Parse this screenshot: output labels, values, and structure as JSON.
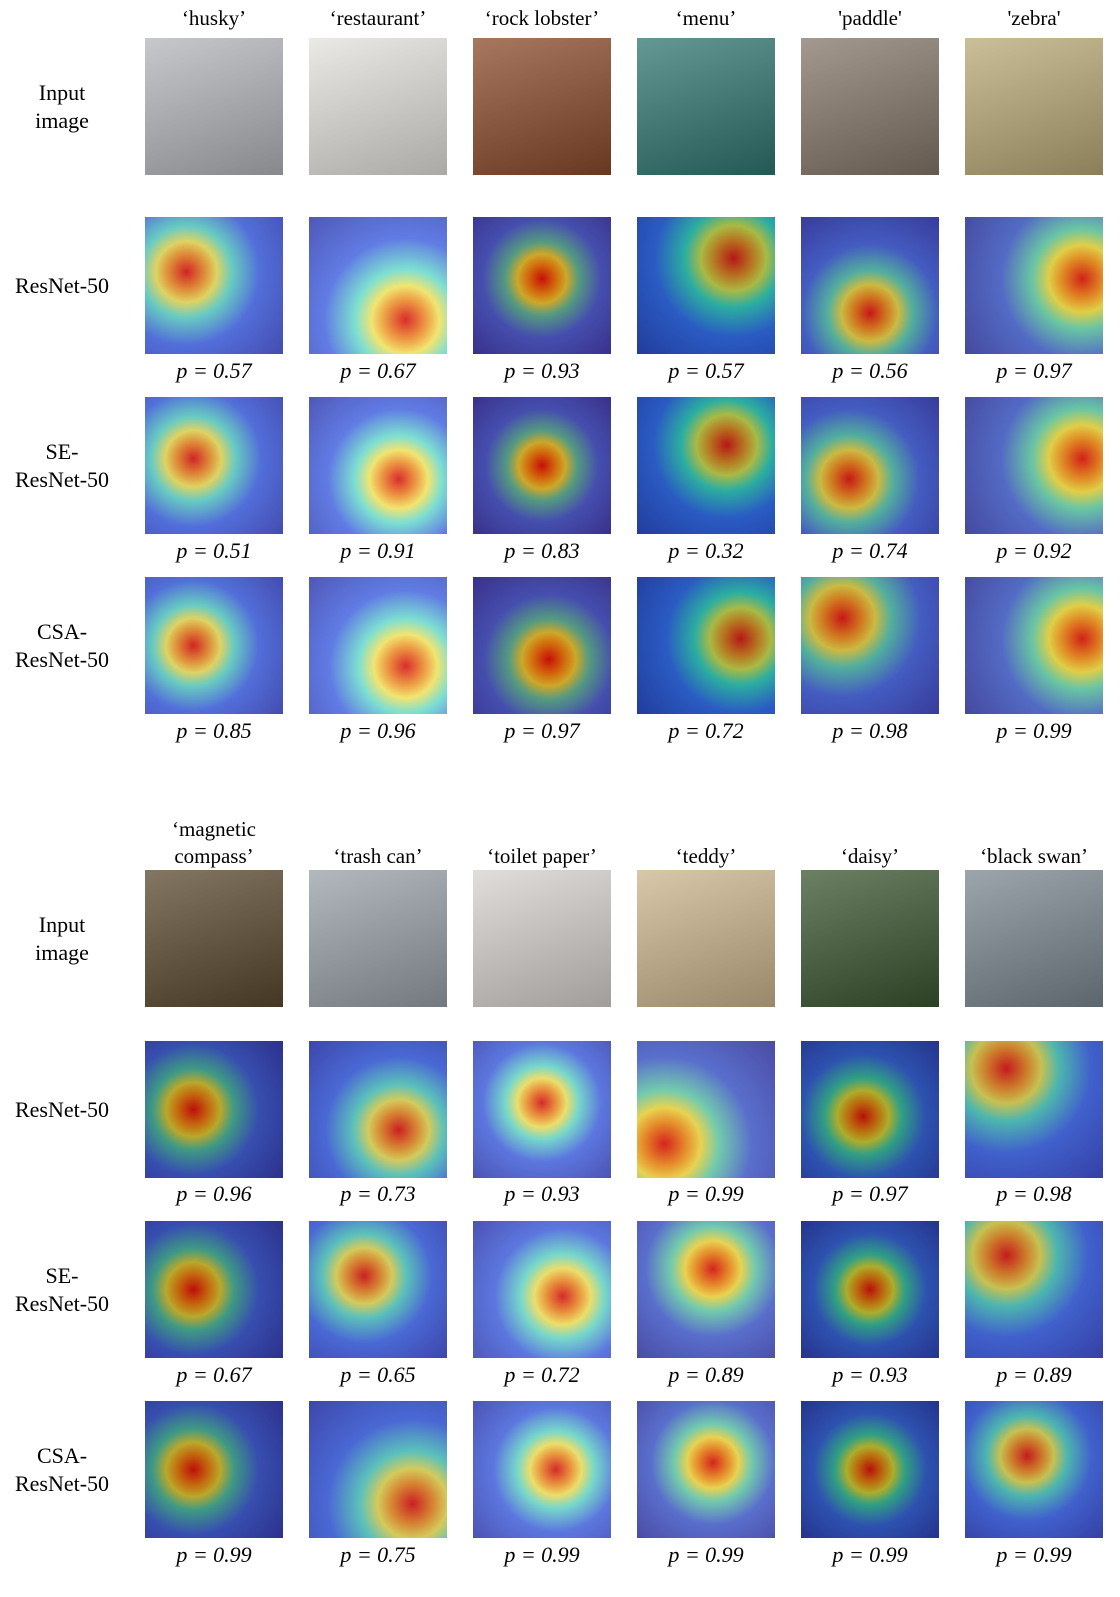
{
  "sections": [
    {
      "classes": [
        "‘husky’",
        "‘restaurant’",
        "‘rock lobster’",
        "‘menu’",
        "'paddle'",
        "'zebra'"
      ],
      "rows": [
        {
          "label": [
            "Input",
            "image"
          ]
        },
        {
          "label": [
            "ResNet-50"
          ],
          "p": [
            "p = 0.57",
            "p = 0.67",
            "p = 0.93",
            "p = 0.57",
            "p = 0.56",
            "p = 0.97"
          ]
        },
        {
          "label": [
            "SE-",
            "ResNet-50"
          ],
          "p": [
            "p = 0.51",
            "p = 0.91",
            "p = 0.83",
            "p = 0.32",
            "p = 0.74",
            "p = 0.92"
          ]
        },
        {
          "label": [
            "CSA-",
            "ResNet-50"
          ],
          "p": [
            "p = 0.85",
            "p = 0.96",
            "p = 0.97",
            "p = 0.72",
            "p = 0.98",
            "p = 0.99"
          ]
        }
      ]
    },
    {
      "classes": [
        "‘magnetic compass’",
        "‘trash can’",
        "‘toilet paper’",
        "‘teddy’",
        "‘daisy’",
        "‘black swan’"
      ],
      "rows": [
        {
          "label": [
            "Input",
            "image"
          ]
        },
        {
          "label": [
            "ResNet-50"
          ],
          "p": [
            "p = 0.96",
            "p = 0.73",
            "p = 0.93",
            "p = 0.99",
            "p = 0.97",
            "p = 0.98"
          ]
        },
        {
          "label": [
            "SE-",
            "ResNet-50"
          ],
          "p": [
            "p = 0.67",
            "p = 0.65",
            "p = 0.72",
            "p = 0.89",
            "p = 0.93",
            "p = 0.89"
          ]
        },
        {
          "label": [
            "CSA-",
            "ResNet-50"
          ],
          "p": [
            "p = 0.99",
            "p = 0.75",
            "p = 0.99",
            "p = 0.99",
            "p = 0.99",
            "p = 0.99"
          ]
        }
      ]
    }
  ]
}
